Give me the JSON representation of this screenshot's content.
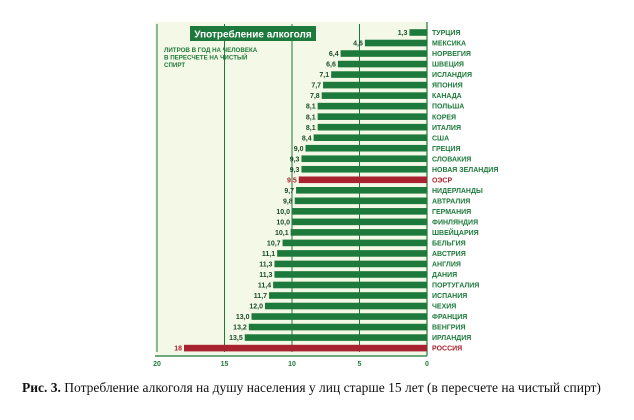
{
  "chart_data": {
    "type": "bar",
    "orientation": "horizontal",
    "title": "Употребление алкоголя",
    "subtitle": "ЛИТРОВ В ГОД НА ЧЕЛОВЕКА В ПЕРЕСЧЕТЕ НА ЧИСТЫЙ СПИРТ",
    "xlim": [
      20,
      0
    ],
    "x_ticks": [
      20,
      15,
      10,
      5,
      0
    ],
    "grid": true,
    "colors": {
      "bar": "#1e7a3c",
      "highlight": "#a8232f",
      "panel": "#f4f8e6",
      "header": "#1e7a3c"
    },
    "categories": [
      "ТУРЦИЯ",
      "МЕКСИКА",
      "НОРВЕГИЯ",
      "ШВЕЦИЯ",
      "ИСЛАНДИЯ",
      "ЯПОНИЯ",
      "КАНАДА",
      "ПОЛЬША",
      "КОРЕЯ",
      "ИТАЛИЯ",
      "США",
      "ГРЕЦИЯ",
      "СЛОВАКИЯ",
      "НОВАЯ ЗЕЛАНДИЯ",
      "ОЭСР",
      "НИДЕРЛАНДЫ",
      "АВТРАЛИЯ",
      "ГЕРМАНИЯ",
      "ФИНЛЯНДИЯ",
      "ШВЕЙЦАРИЯ",
      "БЕЛЬГИЯ",
      "АВСТРИЯ",
      "АНГЛИЯ",
      "ДАНИЯ",
      "ПОРТУГАЛИЯ",
      "ИСПАНИЯ",
      "ЧЕХИЯ",
      "ФРАНЦИЯ",
      "ВЕНГРИЯ",
      "ИРЛАНДИЯ",
      "РОССИЯ"
    ],
    "values": [
      1.3,
      4.6,
      6.4,
      6.6,
      7.1,
      7.7,
      7.8,
      8.1,
      8.1,
      8.1,
      8.4,
      9.0,
      9.3,
      9.3,
      9.5,
      9.7,
      9.8,
      10.0,
      10.0,
      10.1,
      10.7,
      11.1,
      11.3,
      11.3,
      11.4,
      11.7,
      12.0,
      13.0,
      13.2,
      13.5,
      18
    ],
    "labels": [
      "1,3",
      "4,6",
      "6,4",
      "6,6",
      "7,1",
      "7,7",
      "7,8",
      "8,1",
      "8,1",
      "8,1",
      "8,4",
      "9,0",
      "9,3",
      "9,3",
      "9,5",
      "9,7",
      "9,8",
      "10,0",
      "10,0",
      "10,1",
      "10,7",
      "11,1",
      "11,3",
      "11,3",
      "11,4",
      "11,7",
      "12,0",
      "13,0",
      "13,2",
      "13,5",
      "18"
    ],
    "highlighted": [
      "ОЭСР",
      "РОССИЯ"
    ]
  },
  "caption": {
    "figure_label": "Рис. 3.",
    "text": "Потребление алкоголя на душу населения у лиц старше 15 лет (в пересчете на чистый спирт)"
  }
}
